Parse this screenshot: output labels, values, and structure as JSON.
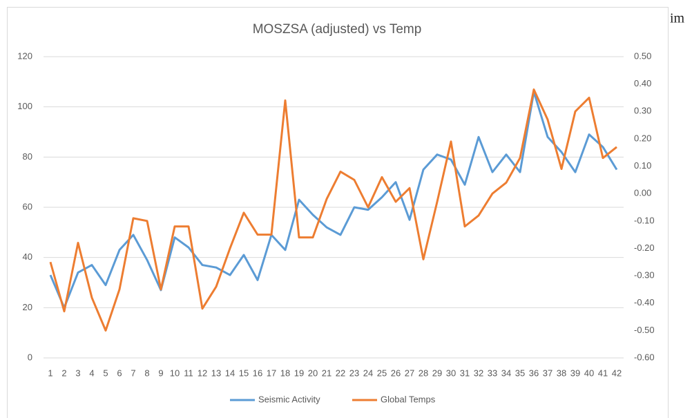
{
  "chart_data": {
    "type": "line",
    "title": "MOSZSA (adjusted) vs Temp",
    "categories": [
      1,
      2,
      3,
      4,
      5,
      6,
      7,
      8,
      9,
      10,
      11,
      12,
      13,
      14,
      15,
      16,
      17,
      18,
      19,
      20,
      21,
      22,
      23,
      24,
      25,
      26,
      27,
      28,
      29,
      30,
      31,
      32,
      33,
      34,
      35,
      36,
      37,
      38,
      39,
      40,
      41,
      42
    ],
    "series": [
      {
        "name": "Seismic Activity",
        "color": "#5b9bd5",
        "values": [
          33,
          20,
          34,
          37,
          29,
          43,
          49,
          39,
          27,
          48,
          44,
          37,
          36,
          33,
          41,
          31,
          49,
          43,
          63,
          57,
          52,
          49,
          60,
          59,
          64,
          70,
          55,
          75,
          81,
          79,
          69,
          88,
          74,
          81,
          74,
          106,
          88,
          82,
          74,
          89,
          84,
          75
        ]
      },
      {
        "name": "Global Temps",
        "color": "#ed7d31",
        "axis": "y2",
        "values": [
          -0.25,
          -0.43,
          -0.18,
          -0.38,
          -0.5,
          -0.35,
          -0.09,
          -0.1,
          -0.35,
          -0.12,
          -0.12,
          -0.42,
          -0.34,
          -0.2,
          -0.07,
          -0.15,
          -0.15,
          0.34,
          -0.16,
          -0.16,
          -0.02,
          0.08,
          0.05,
          -0.05,
          0.06,
          -0.03,
          0.02,
          -0.24,
          -0.03,
          0.19,
          -0.12,
          -0.08,
          0.0,
          0.04,
          0.13,
          0.38,
          0.27,
          0.09,
          0.3,
          0.35,
          0.13,
          0.17
        ]
      }
    ],
    "ylim": [
      0,
      120
    ],
    "yticks": [
      0,
      20,
      40,
      60,
      80,
      100,
      120
    ],
    "y2lim": [
      -0.6,
      0.5
    ],
    "y2ticks": [
      {
        "value": -0.6,
        "label": "-0.60"
      },
      {
        "value": -0.5,
        "label": "-0.50"
      },
      {
        "value": -0.4,
        "label": "-0.40"
      },
      {
        "value": -0.3,
        "label": "-0.30"
      },
      {
        "value": -0.2,
        "label": "-0.20"
      },
      {
        "value": -0.1,
        "label": "-0.10"
      },
      {
        "value": 0,
        "label": "0.00"
      },
      {
        "value": 0.1,
        "label": "0.10"
      },
      {
        "value": 0.2,
        "label": "0.20"
      },
      {
        "value": 0.3,
        "label": "0.30"
      },
      {
        "value": 0.4,
        "label": "0.40"
      },
      {
        "value": 0.5,
        "label": "0.50"
      }
    ],
    "grid": true,
    "legend": "bottom"
  },
  "side_text": "im"
}
